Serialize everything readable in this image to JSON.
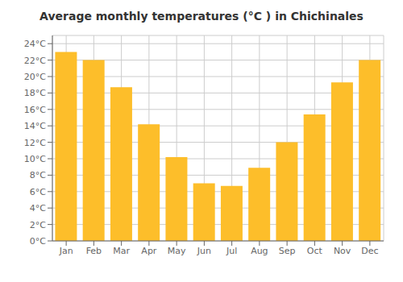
{
  "chart_data": {
    "type": "bar",
    "title": "Average monthly temperatures (°C ) in Chichinales",
    "categories": [
      "Jan",
      "Feb",
      "Mar",
      "Apr",
      "May",
      "Jun",
      "Jul",
      "Aug",
      "Sep",
      "Oct",
      "Nov",
      "Dec"
    ],
    "values": [
      23.0,
      22.0,
      18.7,
      14.2,
      10.2,
      7.0,
      6.7,
      8.9,
      12.0,
      15.4,
      19.3,
      22.0
    ],
    "color": "#FDBE2A",
    "ylim": [
      0,
      25
    ],
    "yticks": [
      {
        "value": 0,
        "label": "0°C"
      },
      {
        "value": 2,
        "label": "2°C"
      },
      {
        "value": 4,
        "label": "4°C"
      },
      {
        "value": 6,
        "label": "6°C"
      },
      {
        "value": 8,
        "label": "8°C"
      },
      {
        "value": 10,
        "label": "10°C"
      },
      {
        "value": 12,
        "label": "12°C"
      },
      {
        "value": 14,
        "label": "14°C"
      },
      {
        "value": 16,
        "label": "16°C"
      },
      {
        "value": 18,
        "label": "18°C"
      },
      {
        "value": 20,
        "label": "20°C"
      },
      {
        "value": 22,
        "label": "22°C"
      },
      {
        "value": 24,
        "label": "24°C"
      }
    ],
    "grid": true
  }
}
